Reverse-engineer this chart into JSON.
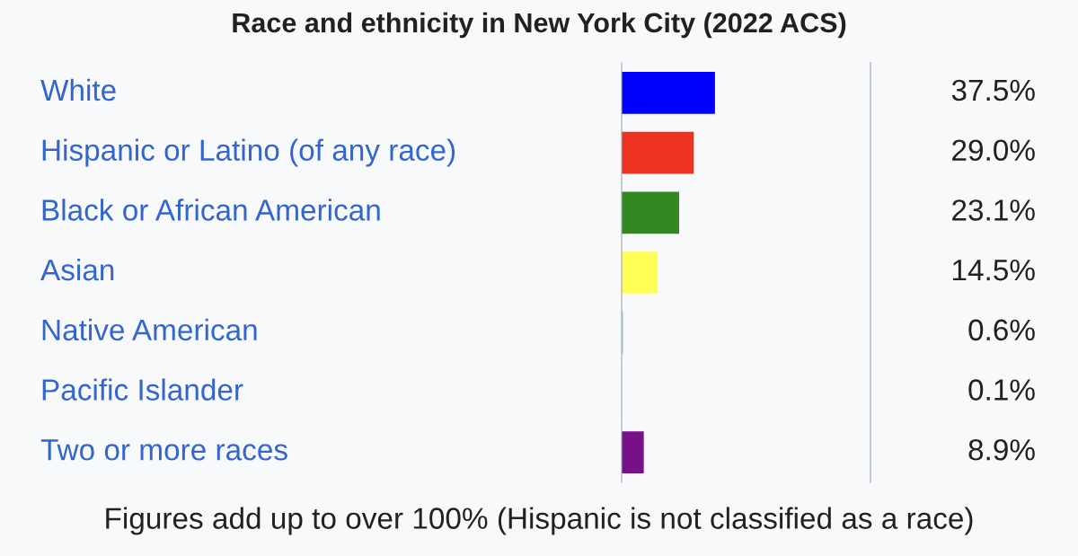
{
  "chart_data": {
    "type": "bar",
    "orientation": "horizontal",
    "title": "Race and ethnicity in New York City (2022 ACS)",
    "categories": [
      "White",
      "Hispanic or Latino (of any race)",
      "Black or African American",
      "Asian",
      "Native American",
      "Pacific Islander",
      "Two or more races"
    ],
    "values": [
      37.5,
      29.0,
      23.1,
      14.5,
      0.6,
      0.1,
      8.9
    ],
    "colors": [
      "#0000ff",
      "#ee3322",
      "#338822",
      "#ffff55",
      "#99ddcc",
      "#bbddff",
      "#771188"
    ],
    "value_labels": [
      "37.5%",
      "29.0%",
      "23.1%",
      "14.5%",
      "0.6%",
      "0.1%",
      "8.9%"
    ],
    "xlim": [
      0,
      100
    ],
    "annotations": [
      "Figures add up to over 100% (Hispanic is not classified as a race)"
    ]
  }
}
